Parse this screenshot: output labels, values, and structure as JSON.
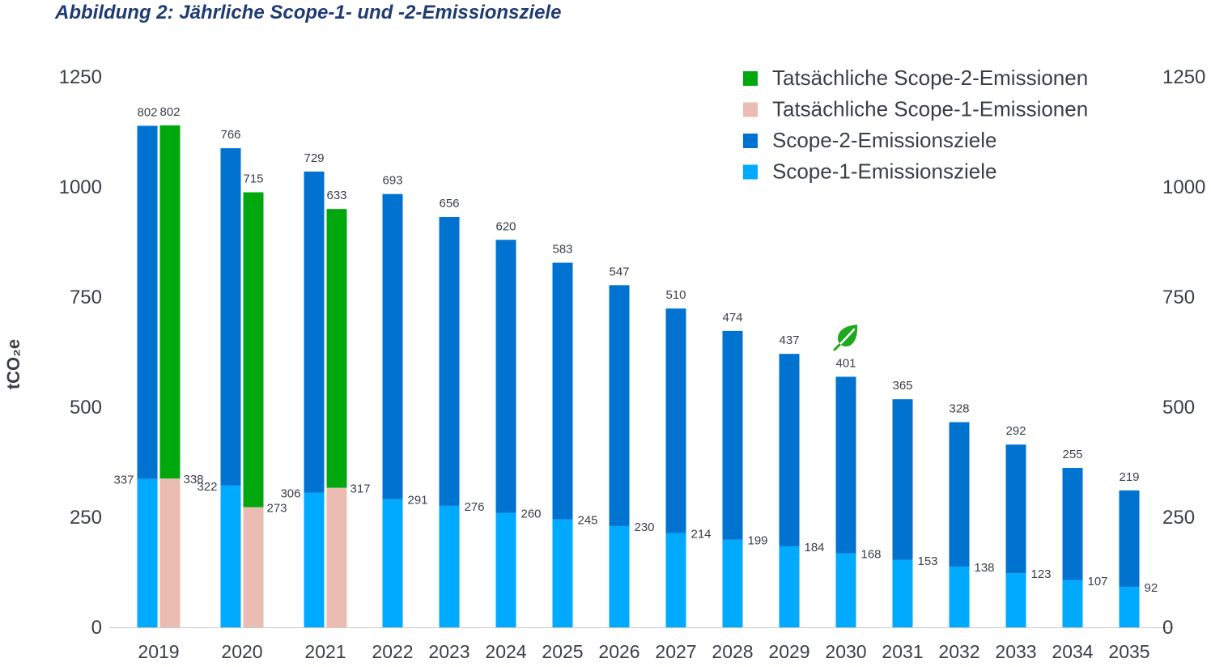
{
  "title": "Abbildung 2: Jährliche Scope-1- und -2-Emissionsziele",
  "chart_data": {
    "type": "bar",
    "title": "Abbildung 2: Jährliche Scope-1- und -2-Emissionsziele",
    "ylabel": "tCO₂e",
    "ylim": [
      0,
      1250
    ],
    "yticks": [
      0,
      250,
      500,
      750,
      1000,
      1250
    ],
    "secondary_axis_ticks": [
      0,
      250,
      500,
      750,
      1000,
      1250
    ],
    "stacked": true,
    "categories": [
      "2019",
      "2020",
      "2021",
      "2022",
      "2023",
      "2024",
      "2025",
      "2026",
      "2027",
      "2028",
      "2029",
      "2030",
      "2031",
      "2032",
      "2033",
      "2034",
      "2035"
    ],
    "series": [
      {
        "name": "Scope-1-Emissionsziele",
        "color": "#00aaff",
        "stack": "target",
        "values": [
          337,
          322,
          306,
          291,
          276,
          260,
          245,
          230,
          214,
          199,
          184,
          168,
          153,
          138,
          123,
          107,
          92
        ]
      },
      {
        "name": "Scope-2-Emissionsziele",
        "color": "#0072d0",
        "stack": "target",
        "values": [
          802,
          766,
          729,
          693,
          656,
          620,
          583,
          547,
          510,
          474,
          437,
          401,
          365,
          328,
          292,
          255,
          219
        ]
      },
      {
        "name": "Tatsächliche Scope-1-Emissionen",
        "color": "#ebbcb1",
        "stack": "actual",
        "values": [
          338,
          273,
          317,
          null,
          null,
          null,
          null,
          null,
          null,
          null,
          null,
          null,
          null,
          null,
          null,
          null,
          null
        ]
      },
      {
        "name": "Tatsächliche Scope-2-Emissionen",
        "color": "#00a80e",
        "stack": "actual",
        "values": [
          802,
          715,
          633,
          null,
          null,
          null,
          null,
          null,
          null,
          null,
          null,
          null,
          null,
          null,
          null,
          null,
          null
        ]
      }
    ],
    "legend": {
      "position": "top-right",
      "items": [
        {
          "label": "Tatsächliche Scope-2-Emissionen",
          "color": "#00a80e"
        },
        {
          "label": "Tatsächliche Scope-1-Emissionen",
          "color": "#ebbcb1"
        },
        {
          "label": "Scope-2-Emissionsziele",
          "color": "#0072d0"
        },
        {
          "label": "Scope-1-Emissionsziele",
          "color": "#00aaff"
        }
      ]
    },
    "annotation_icon": {
      "name": "leaf-icon",
      "category": "2030",
      "color": "#1ea81e"
    },
    "grid": false
  }
}
